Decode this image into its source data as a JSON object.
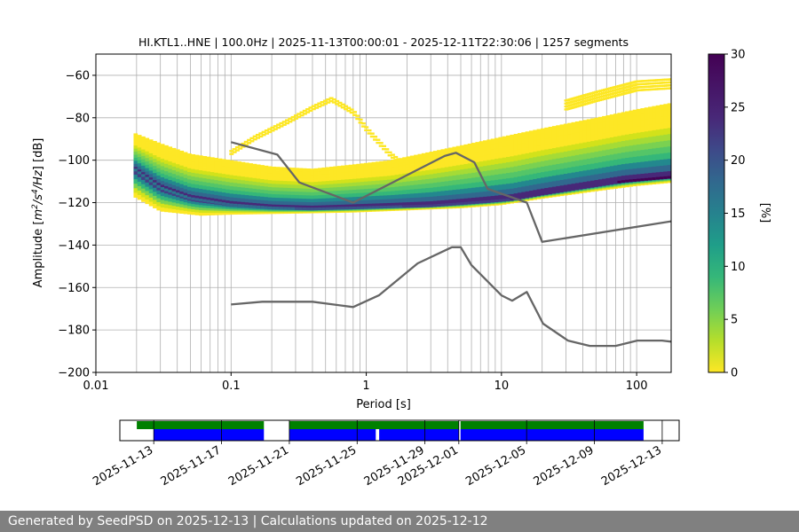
{
  "chart_data": [
    {
      "type": "heatmap",
      "title": "HI.KTL1..HNE | 100.0Hz | 2025-11-13T00:00:01 - 2025-12-11T22:30:06 | 1257 segments",
      "xlabel": "Period [s]",
      "ylabel_parts": [
        "Amplitude [",
        "m",
        "2",
        "/",
        "s",
        "4",
        "/",
        "Hz",
        "] [dB]"
      ],
      "x_scale": "log",
      "xlim": [
        0.01,
        180
      ],
      "ylim": [
        -200,
        -50
      ],
      "x_ticks": [
        {
          "value": 0.01,
          "label": "0.01"
        },
        {
          "value": 0.1,
          "label": "0.1"
        },
        {
          "value": 1,
          "label": "1"
        },
        {
          "value": 10,
          "label": "10"
        },
        {
          "value": 100,
          "label": "100"
        }
      ],
      "y_ticks": [
        {
          "value": -60,
          "label": "−60"
        },
        {
          "value": -80,
          "label": "−80"
        },
        {
          "value": -100,
          "label": "−100"
        },
        {
          "value": -120,
          "label": "−120"
        },
        {
          "value": -140,
          "label": "−140"
        },
        {
          "value": -160,
          "label": "−160"
        },
        {
          "value": -180,
          "label": "−180"
        },
        {
          "value": -200,
          "label": "−200"
        }
      ],
      "grid": true,
      "colorbar": {
        "label": "[%]",
        "range": [
          0,
          30
        ],
        "colormap": "viridis_r",
        "ticks": [
          {
            "value": 0,
            "label": "0"
          },
          {
            "value": 5,
            "label": "5"
          },
          {
            "value": 10,
            "label": "10"
          },
          {
            "value": 15,
            "label": "15"
          },
          {
            "value": 20,
            "label": "20"
          },
          {
            "value": 25,
            "label": "25"
          },
          {
            "value": 30,
            "label": "30"
          }
        ]
      },
      "density": {
        "period_range": [
          0.019,
          180
        ],
        "median_curve": [
          [
            0.019,
            -104
          ],
          [
            0.03,
            -113
          ],
          [
            0.05,
            -118
          ],
          [
            0.1,
            -121
          ],
          [
            0.2,
            -122.5
          ],
          [
            0.4,
            -123
          ],
          [
            0.8,
            -122.5
          ],
          [
            1.5,
            -122
          ],
          [
            3,
            -121.5
          ],
          [
            5,
            -120.5
          ],
          [
            8,
            -119.5
          ],
          [
            12,
            -118.5
          ],
          [
            20,
            -116
          ],
          [
            40,
            -113
          ],
          [
            80,
            -110
          ],
          [
            180,
            -108
          ]
        ],
        "lower_curve": [
          [
            0.019,
            -117
          ],
          [
            0.03,
            -124
          ],
          [
            0.06,
            -126
          ],
          [
            0.1,
            -125.5
          ],
          [
            0.3,
            -125
          ],
          [
            0.8,
            -124.5
          ],
          [
            2,
            -123.5
          ],
          [
            5,
            -122.5
          ],
          [
            10,
            -121
          ],
          [
            20,
            -118
          ],
          [
            50,
            -114.5
          ],
          [
            100,
            -112
          ],
          [
            180,
            -110.5
          ]
        ],
        "upper_curve": [
          [
            0.019,
            -87
          ],
          [
            0.03,
            -92
          ],
          [
            0.05,
            -97
          ],
          [
            0.1,
            -100
          ],
          [
            0.2,
            -103
          ],
          [
            0.4,
            -104
          ],
          [
            0.8,
            -102
          ],
          [
            1.5,
            -100
          ],
          [
            3,
            -96
          ],
          [
            6,
            -92
          ],
          [
            10,
            -89
          ],
          [
            20,
            -85
          ],
          [
            50,
            -80
          ],
          [
            100,
            -76
          ],
          [
            180,
            -73
          ]
        ],
        "outlier_arc": [
          [
            0.1,
            -97
          ],
          [
            0.15,
            -90
          ],
          [
            0.25,
            -83
          ],
          [
            0.4,
            -76
          ],
          [
            0.55,
            -72
          ],
          [
            0.8,
            -78
          ],
          [
            1.0,
            -86
          ],
          [
            1.5,
            -98
          ],
          [
            2,
            -104
          ]
        ],
        "outlier_top": [
          [
            30,
            -76
          ],
          [
            50,
            -72
          ],
          [
            100,
            -67
          ],
          [
            180,
            -66
          ]
        ]
      },
      "noise_models": [
        {
          "points": [
            [
              0.1,
              -91.5
            ],
            [
              0.22,
              -97.4
            ],
            [
              0.32,
              -110.5
            ],
            [
              0.8,
              -120
            ],
            [
              3.8,
              -98
            ],
            [
              4.6,
              -96.5
            ],
            [
              6.3,
              -101
            ],
            [
              7.9,
              -113.5
            ],
            [
              15.4,
              -120
            ],
            [
              20,
              -138.5
            ],
            [
              180,
              -128.8
            ]
          ]
        },
        {
          "points": [
            [
              0.1,
              -168
            ],
            [
              0.17,
              -166.7
            ],
            [
              0.4,
              -166.7
            ],
            [
              0.8,
              -169.2
            ],
            [
              1.24,
              -163.7
            ],
            [
              2.4,
              -148.6
            ],
            [
              4.3,
              -141
            ],
            [
              5.0,
              -141
            ],
            [
              6.0,
              -149.5
            ],
            [
              10,
              -163.7
            ],
            [
              12,
              -166.2
            ],
            [
              15.4,
              -162.1
            ],
            [
              20.3,
              -177
            ],
            [
              31,
              -185
            ],
            [
              45,
              -187.5
            ],
            [
              70,
              -187.5
            ],
            [
              101,
              -185
            ],
            [
              154,
              -185
            ],
            [
              180,
              -185.5
            ]
          ]
        }
      ]
    },
    {
      "type": "timeline",
      "x_ticks": [
        "2025-11-13",
        "2025-11-17",
        "2025-11-21",
        "2025-11-25",
        "2025-11-29",
        "2025-12-01",
        "2025-12-05",
        "2025-12-09",
        "2025-12-13"
      ],
      "xlim": [
        "2025-11-11",
        "2025-12-14"
      ],
      "tracks": [
        {
          "color": "#008000",
          "spans": [
            [
              "2025-11-12",
              "2025-11-19.5"
            ],
            [
              "2025-11-21",
              "2025-12-01"
            ],
            [
              "2025-12-01.1",
              "2025-12-11.9"
            ]
          ]
        },
        {
          "color": "#0000ff",
          "spans": [
            [
              "2025-11-13",
              "2025-11-19.5"
            ],
            [
              "2025-11-21",
              "2025-11-26.1"
            ],
            [
              "2025-11-26.3",
              "2025-12-01"
            ],
            [
              "2025-12-01.1",
              "2025-12-11.9"
            ]
          ]
        }
      ]
    }
  ],
  "footer": "Generated by SeedPSD on 2025-12-13 | Calculations updated on 2025-12-12"
}
